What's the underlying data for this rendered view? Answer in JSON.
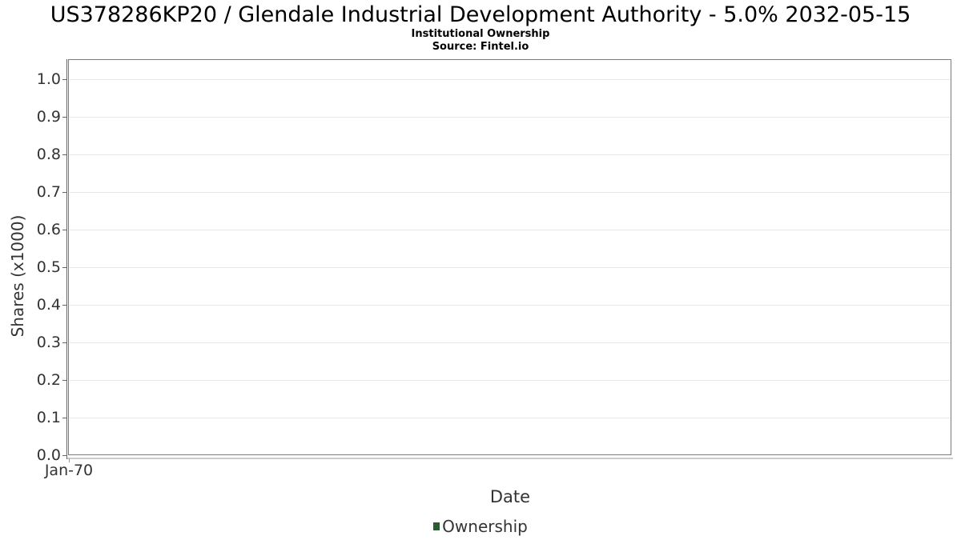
{
  "chart": {
    "title": "US378286KP20 / Glendale Industrial Development Authority - 5.0% 2032-05-15",
    "subtitle": "Institutional Ownership",
    "source": "Source: Fintel.io",
    "xlabel": "Date",
    "ylabel": "Shares (x1000)",
    "legend_label": "Ownership"
  },
  "chart_data": {
    "type": "line",
    "title": "US378286KP20 / Glendale Industrial Development Authority - 5.0% 2032-05-15",
    "subtitle": "Institutional Ownership",
    "source": "Source: Fintel.io",
    "xlabel": "Date",
    "ylabel": "Shares (x1000)",
    "x_tick_labels": [
      "Jan-70"
    ],
    "y_ticks": [
      0.0,
      0.1,
      0.2,
      0.3,
      0.4,
      0.5,
      0.6,
      0.7,
      0.8,
      0.9,
      1.0
    ],
    "ylim": [
      0,
      1.05
    ],
    "grid": true,
    "legend_position": "bottom",
    "series": [
      {
        "name": "Ownership",
        "color": "#2a5c34",
        "x": [],
        "values": []
      }
    ]
  },
  "colors": {
    "title_text": "#000000",
    "axis_text": "#333333",
    "plot_border": "#7c7c7c",
    "gridline": "#e6e6e6",
    "axis_line": "#666666",
    "legend_marker": "#2a5c34"
  }
}
